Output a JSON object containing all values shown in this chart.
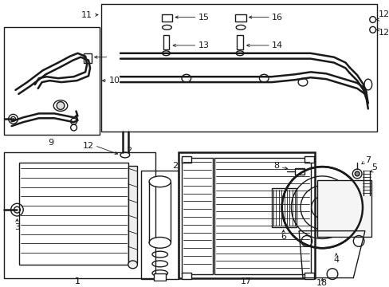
{
  "bg_color": "#ffffff",
  "line_color": "#1a1a1a",
  "lw": 1.0,
  "lw2": 1.8,
  "lw_thin": 0.6,
  "figsize": [
    4.89,
    3.6
  ],
  "dpi": 100
}
